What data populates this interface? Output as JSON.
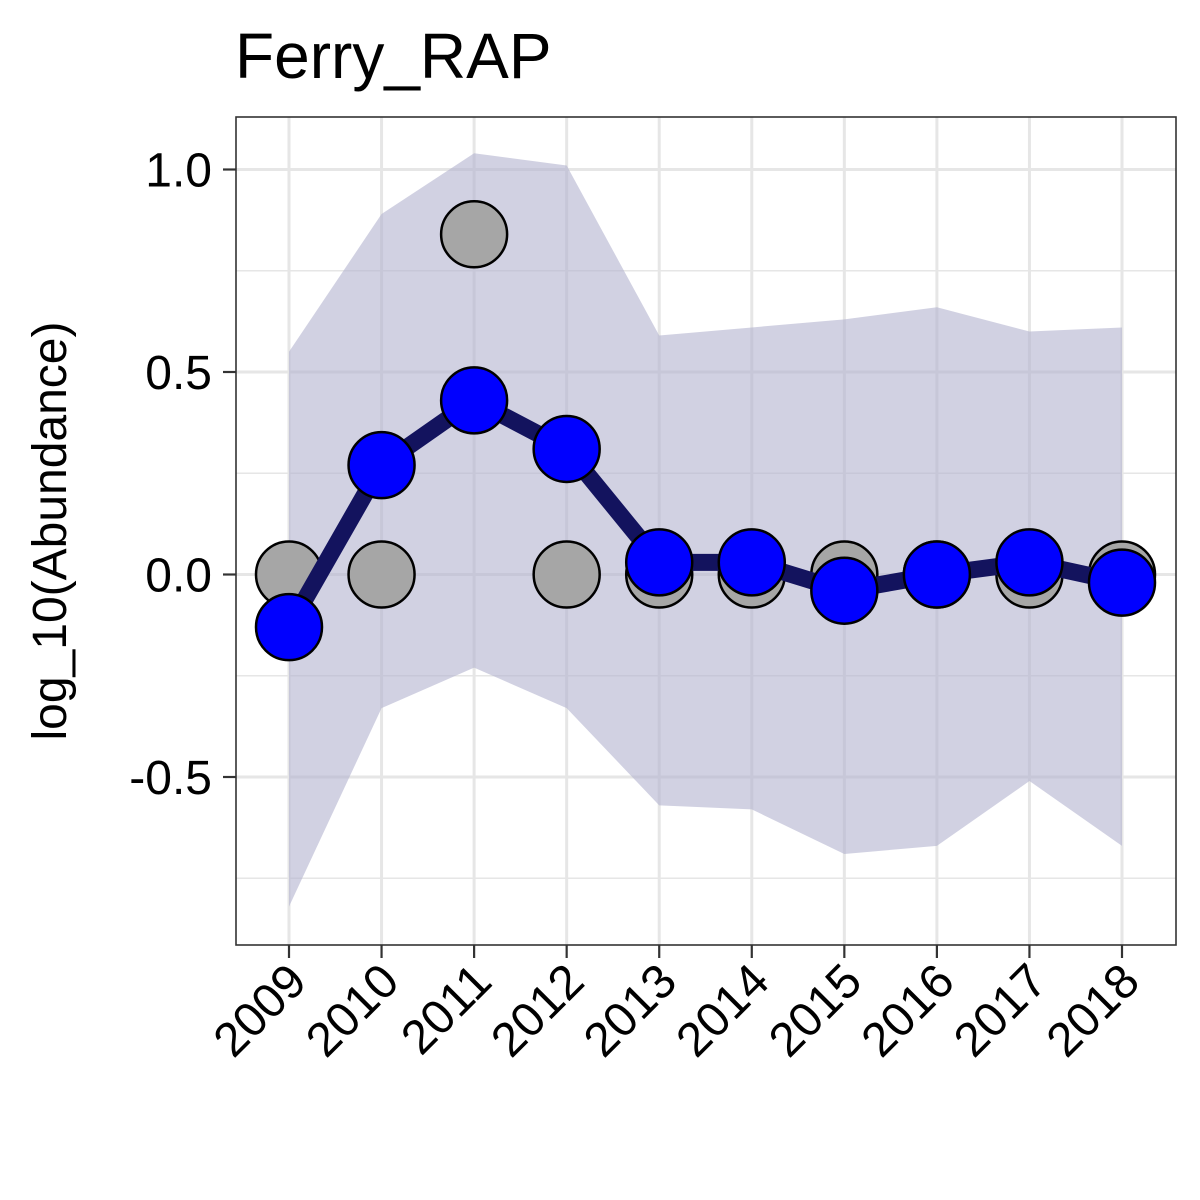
{
  "chart_data": {
    "type": "line",
    "title": "Ferry_RAP",
    "xlabel": "",
    "ylabel": "log_10(Abundance)",
    "x": [
      "2009",
      "2010",
      "2011",
      "2012",
      "2013",
      "2014",
      "2015",
      "2016",
      "2017",
      "2018"
    ],
    "ylim": [
      -0.92,
      1.13
    ],
    "yticks": [
      1.0,
      0.5,
      0.0,
      -0.5
    ],
    "ytick_labels": [
      "1.0",
      "0.5",
      "0.0",
      "-0.5"
    ],
    "grid": true,
    "series": [
      {
        "kind": "band",
        "lower": [
          -0.82,
          -0.33,
          -0.23,
          -0.33,
          -0.57,
          -0.58,
          -0.69,
          -0.67,
          -0.51,
          -0.67
        ],
        "upper": [
          0.55,
          0.89,
          1.04,
          1.01,
          0.59,
          0.61,
          0.63,
          0.66,
          0.6,
          0.61
        ]
      },
      {
        "kind": "observed-points",
        "values": [
          0.0,
          0.0,
          0.84,
          0.0,
          0.0,
          0.0,
          0.0,
          0.0,
          0.0,
          0.0
        ]
      },
      {
        "kind": "estimated-line",
        "values": [
          -0.13,
          0.27,
          0.43,
          0.31,
          0.03,
          0.03,
          -0.04,
          0.0,
          0.03,
          -0.02
        ]
      }
    ],
    "colors": {
      "band": "#b3b3cf",
      "line": "#13135e",
      "estimated_point": "#0000ff",
      "observed_point": "#a6a6a6",
      "grid": "#e6e6e6",
      "panel_border": "#333333"
    }
  }
}
